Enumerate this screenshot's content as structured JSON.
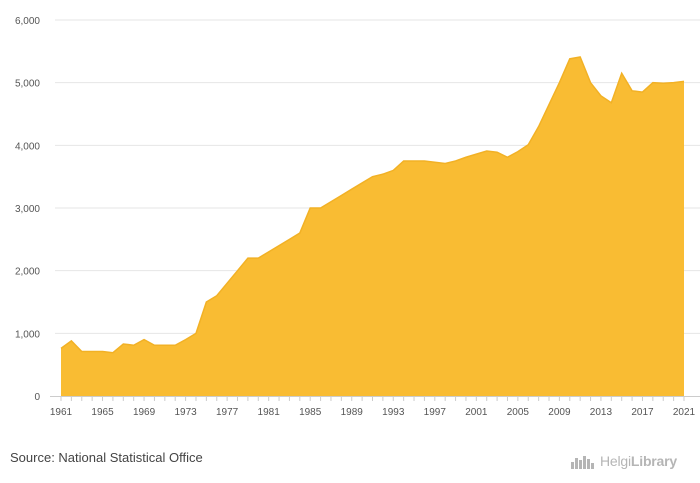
{
  "source_text": "Source: National Statistical Office",
  "brand": {
    "name_part1": "Helgi",
    "name_part2": "Library",
    "icon": "helgi-library-logo-icon"
  },
  "colors": {
    "fill": "#f9bc33",
    "stroke": "#f2b125",
    "grid": "#e6e6e6",
    "axis": "#cccccc",
    "tick_text": "#555555"
  },
  "chart_data": {
    "type": "area",
    "title": "",
    "xlabel": "",
    "ylabel": "",
    "x": [
      1961,
      1962,
      1963,
      1964,
      1965,
      1966,
      1967,
      1968,
      1969,
      1970,
      1971,
      1972,
      1973,
      1974,
      1975,
      1976,
      1977,
      1978,
      1979,
      1980,
      1981,
      1982,
      1983,
      1984,
      1985,
      1986,
      1987,
      1988,
      1989,
      1990,
      1991,
      1992,
      1993,
      1994,
      1995,
      1996,
      1997,
      1998,
      1999,
      2000,
      2001,
      2002,
      2003,
      2004,
      2005,
      2006,
      2007,
      2008,
      2009,
      2010,
      2011,
      2012,
      2013,
      2014,
      2015,
      2016,
      2017,
      2018,
      2019,
      2020,
      2021
    ],
    "values": [
      760,
      880,
      710,
      710,
      710,
      690,
      830,
      810,
      900,
      810,
      810,
      810,
      900,
      1000,
      1500,
      1600,
      1800,
      2000,
      2200,
      2200,
      2300,
      2400,
      2500,
      2600,
      3000,
      3000,
      3100,
      3200,
      3300,
      3400,
      3500,
      3540,
      3600,
      3750,
      3750,
      3750,
      3730,
      3710,
      3750,
      3810,
      3860,
      3910,
      3890,
      3810,
      3900,
      4010,
      4300,
      4650,
      5000,
      5380,
      5410,
      5000,
      4790,
      4680,
      5150,
      4870,
      4850,
      5000,
      4990,
      5000,
      5020
    ],
    "ylim": [
      0,
      6000
    ],
    "y_ticks": [
      0,
      1000,
      2000,
      3000,
      4000,
      5000,
      6000
    ],
    "y_tick_labels": [
      "0",
      "1,000",
      "2,000",
      "3,000",
      "4,000",
      "5,000",
      "6,000"
    ],
    "x_ticks": [
      1961,
      1965,
      1969,
      1973,
      1977,
      1981,
      1985,
      1989,
      1993,
      1997,
      2001,
      2005,
      2009,
      2013,
      2017,
      2021
    ],
    "x_tick_labels": [
      "1961",
      "1965",
      "1969",
      "1973",
      "1977",
      "1981",
      "1985",
      "1989",
      "1993",
      "1997",
      "2001",
      "2005",
      "2009",
      "2013",
      "2017",
      "2021"
    ],
    "grid": true,
    "legend": "none"
  }
}
